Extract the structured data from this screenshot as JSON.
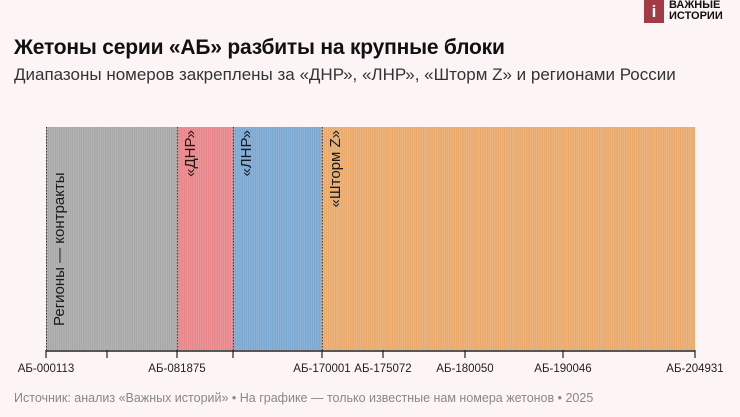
{
  "logo": {
    "mark": "i",
    "line1": "ВАЖНЫЕ",
    "line2": "ИСТОРИИ"
  },
  "title": "Жетоны серии «АБ» разбиты на крупные блоки",
  "subtitle": "Диапазоны номеров закреплены за «ДНР», «ЛНР», «Шторм Z» и регионами России",
  "source": "Источник: анализ «Важных историй» • На графике — только известные нам номера жетонов • 2025",
  "chart_data": {
    "type": "bar",
    "orientation": "horizontal-stacked-strip",
    "segments": [
      {
        "label": "Регионы — контракты",
        "share": 0.202,
        "color": "#a8a8a8"
      },
      {
        "label": "«ДНР»",
        "share": 0.086,
        "color": "#e8868a"
      },
      {
        "label": "«ЛНР»",
        "share": 0.137,
        "color": "#7ca8d2"
      },
      {
        "label": "«Шторм Z»",
        "share": 0.575,
        "color": "#e9aa6c"
      }
    ],
    "x_tick_labels": [
      "АБ-000113",
      "",
      "АБ-081875",
      "",
      "АБ-170001",
      "АБ-175072",
      "АБ-180050",
      "АБ-190046",
      "АБ-204931"
    ],
    "grid": false,
    "legend": "none"
  }
}
